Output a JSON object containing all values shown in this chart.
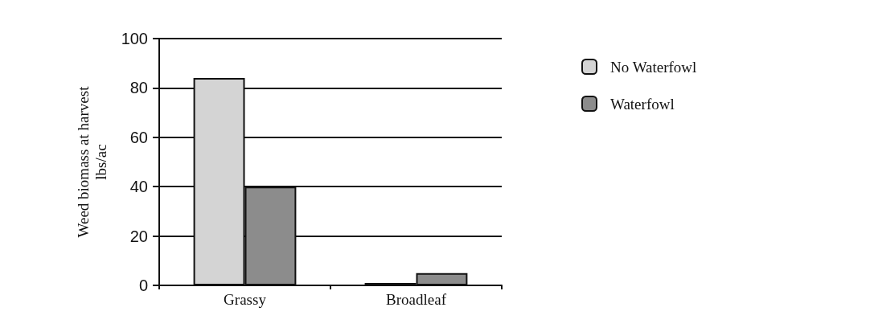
{
  "chart_data": {
    "type": "bar",
    "ylabel": "Weed biomass at harvest\nlbs/ac",
    "categories": [
      "Grassy",
      "Broadleaf"
    ],
    "series": [
      {
        "name": "No Waterfowl",
        "color": "#d4d4d4",
        "values": [
          84,
          1
        ]
      },
      {
        "name": "Waterfowl",
        "color": "#8c8c8c",
        "values": [
          40,
          5
        ]
      }
    ],
    "ylim": [
      0,
      100
    ],
    "yticks": [
      0,
      20,
      40,
      60,
      80,
      100
    ],
    "grid": "y",
    "legend": "top right"
  }
}
